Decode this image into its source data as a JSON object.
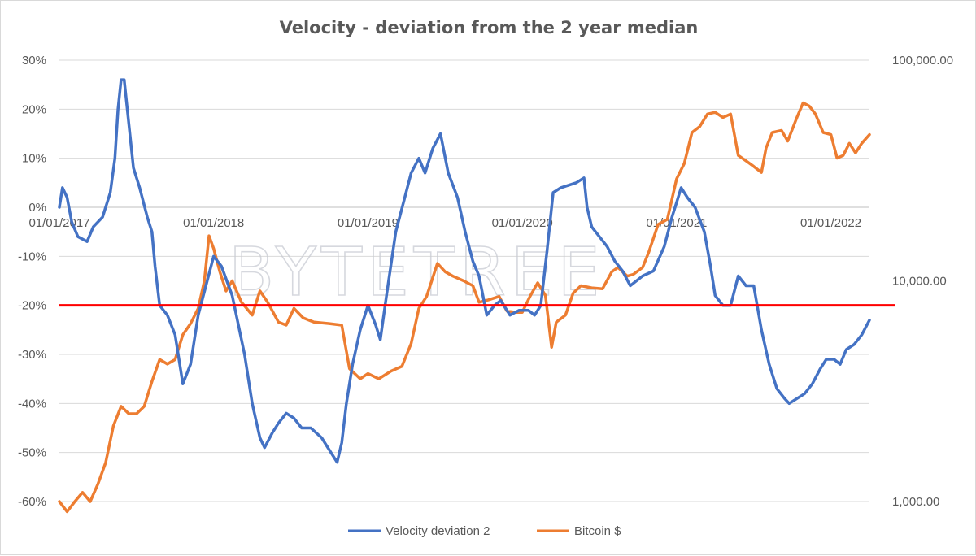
{
  "chart_data": {
    "type": "line",
    "title": "Velocity - deviation from the 2 year median",
    "watermark": "BYTETREE",
    "x_range": [
      2017.0,
      2022.25
    ],
    "x_ticks": [
      {
        "x": 2017,
        "label": "01/01/2017"
      },
      {
        "x": 2018,
        "label": "01/01/2018"
      },
      {
        "x": 2019,
        "label": "01/01/2019"
      },
      {
        "x": 2020,
        "label": "01/01/2020"
      },
      {
        "x": 2021,
        "label": "01/01/2021"
      },
      {
        "x": 2022,
        "label": "01/01/2022"
      }
    ],
    "y_left": {
      "range": [
        -0.6,
        0.3
      ],
      "ticks": [
        {
          "v": 0.3,
          "label": "30%"
        },
        {
          "v": 0.2,
          "label": "20%"
        },
        {
          "v": 0.1,
          "label": "10%"
        },
        {
          "v": 0.0,
          "label": "0%"
        },
        {
          "v": -0.1,
          "label": "-10%"
        },
        {
          "v": -0.2,
          "label": "-20%"
        },
        {
          "v": -0.3,
          "label": "-30%"
        },
        {
          "v": -0.4,
          "label": "-40%"
        },
        {
          "v": -0.5,
          "label": "-50%"
        },
        {
          "v": -0.6,
          "label": "-60%"
        }
      ]
    },
    "y_right": {
      "scale": "log",
      "range": [
        1000,
        100000
      ],
      "ticks": [
        {
          "v": 100000,
          "label": "100,000.00"
        },
        {
          "v": 10000,
          "label": "10,000.00"
        },
        {
          "v": 1000,
          "label": "1,000.00"
        }
      ]
    },
    "reference_line": {
      "value": -0.2,
      "axis": "left",
      "color": "#ff0000"
    },
    "series": [
      {
        "name": "Velocity deviation 2",
        "axis": "left",
        "color": "#4472c4",
        "points": [
          [
            2017.0,
            0.0
          ],
          [
            2017.02,
            0.04
          ],
          [
            2017.05,
            0.02
          ],
          [
            2017.08,
            -0.03
          ],
          [
            2017.12,
            -0.06
          ],
          [
            2017.18,
            -0.07
          ],
          [
            2017.22,
            -0.04
          ],
          [
            2017.28,
            -0.02
          ],
          [
            2017.33,
            0.03
          ],
          [
            2017.36,
            0.1
          ],
          [
            2017.38,
            0.2
          ],
          [
            2017.4,
            0.26
          ],
          [
            2017.42,
            0.26
          ],
          [
            2017.45,
            0.17
          ],
          [
            2017.48,
            0.08
          ],
          [
            2017.52,
            0.04
          ],
          [
            2017.57,
            -0.02
          ],
          [
            2017.6,
            -0.05
          ],
          [
            2017.62,
            -0.12
          ],
          [
            2017.65,
            -0.2
          ],
          [
            2017.7,
            -0.22
          ],
          [
            2017.75,
            -0.26
          ],
          [
            2017.8,
            -0.36
          ],
          [
            2017.85,
            -0.32
          ],
          [
            2017.9,
            -0.22
          ],
          [
            2017.95,
            -0.16
          ],
          [
            2018.0,
            -0.1
          ],
          [
            2018.05,
            -0.12
          ],
          [
            2018.12,
            -0.18
          ],
          [
            2018.2,
            -0.3
          ],
          [
            2018.25,
            -0.4
          ],
          [
            2018.3,
            -0.47
          ],
          [
            2018.33,
            -0.49
          ],
          [
            2018.38,
            -0.46
          ],
          [
            2018.42,
            -0.44
          ],
          [
            2018.47,
            -0.42
          ],
          [
            2018.52,
            -0.43
          ],
          [
            2018.57,
            -0.45
          ],
          [
            2018.63,
            -0.45
          ],
          [
            2018.7,
            -0.47
          ],
          [
            2018.76,
            -0.5
          ],
          [
            2018.8,
            -0.52
          ],
          [
            2018.83,
            -0.48
          ],
          [
            2018.86,
            -0.4
          ],
          [
            2018.9,
            -0.32
          ],
          [
            2018.95,
            -0.25
          ],
          [
            2019.0,
            -0.2
          ],
          [
            2019.05,
            -0.24
          ],
          [
            2019.08,
            -0.27
          ],
          [
            2019.12,
            -0.18
          ],
          [
            2019.18,
            -0.05
          ],
          [
            2019.23,
            0.01
          ],
          [
            2019.28,
            0.07
          ],
          [
            2019.33,
            0.1
          ],
          [
            2019.37,
            0.07
          ],
          [
            2019.42,
            0.12
          ],
          [
            2019.47,
            0.15
          ],
          [
            2019.52,
            0.07
          ],
          [
            2019.58,
            0.02
          ],
          [
            2019.63,
            -0.05
          ],
          [
            2019.68,
            -0.11
          ],
          [
            2019.72,
            -0.14
          ],
          [
            2019.77,
            -0.22
          ],
          [
            2019.82,
            -0.2
          ],
          [
            2019.86,
            -0.19
          ],
          [
            2019.92,
            -0.22
          ],
          [
            2019.98,
            -0.21
          ],
          [
            2020.04,
            -0.21
          ],
          [
            2020.08,
            -0.22
          ],
          [
            2020.12,
            -0.2
          ],
          [
            2020.16,
            -0.09
          ],
          [
            2020.2,
            0.03
          ],
          [
            2020.25,
            0.04
          ],
          [
            2020.35,
            0.05
          ],
          [
            2020.4,
            0.06
          ],
          [
            2020.42,
            0.0
          ],
          [
            2020.45,
            -0.04
          ],
          [
            2020.5,
            -0.06
          ],
          [
            2020.55,
            -0.08
          ],
          [
            2020.6,
            -0.11
          ],
          [
            2020.65,
            -0.13
          ],
          [
            2020.7,
            -0.16
          ],
          [
            2020.78,
            -0.14
          ],
          [
            2020.85,
            -0.13
          ],
          [
            2020.92,
            -0.08
          ],
          [
            2020.97,
            -0.02
          ],
          [
            2021.0,
            0.01
          ],
          [
            2021.03,
            0.04
          ],
          [
            2021.07,
            0.02
          ],
          [
            2021.12,
            0.0
          ],
          [
            2021.18,
            -0.05
          ],
          [
            2021.22,
            -0.12
          ],
          [
            2021.25,
            -0.18
          ],
          [
            2021.3,
            -0.2
          ],
          [
            2021.35,
            -0.2
          ],
          [
            2021.4,
            -0.14
          ],
          [
            2021.45,
            -0.16
          ],
          [
            2021.5,
            -0.16
          ],
          [
            2021.55,
            -0.25
          ],
          [
            2021.6,
            -0.32
          ],
          [
            2021.65,
            -0.37
          ],
          [
            2021.7,
            -0.39
          ],
          [
            2021.73,
            -0.4
          ],
          [
            2021.78,
            -0.39
          ],
          [
            2021.83,
            -0.38
          ],
          [
            2021.88,
            -0.36
          ],
          [
            2021.93,
            -0.33
          ],
          [
            2021.97,
            -0.31
          ],
          [
            2022.02,
            -0.31
          ],
          [
            2022.06,
            -0.32
          ],
          [
            2022.1,
            -0.29
          ],
          [
            2022.15,
            -0.28
          ],
          [
            2022.2,
            -0.26
          ],
          [
            2022.25,
            -0.23
          ]
        ]
      },
      {
        "name": "Bitcoin $",
        "axis": "right",
        "color": "#ed7d31",
        "points": [
          [
            2017.0,
            1000
          ],
          [
            2017.05,
            900
          ],
          [
            2017.1,
            1000
          ],
          [
            2017.15,
            1100
          ],
          [
            2017.2,
            1000
          ],
          [
            2017.25,
            1200
          ],
          [
            2017.3,
            1500
          ],
          [
            2017.35,
            2200
          ],
          [
            2017.4,
            2700
          ],
          [
            2017.45,
            2500
          ],
          [
            2017.5,
            2500
          ],
          [
            2017.55,
            2700
          ],
          [
            2017.6,
            3500
          ],
          [
            2017.65,
            4400
          ],
          [
            2017.7,
            4200
          ],
          [
            2017.75,
            4400
          ],
          [
            2017.8,
            5700
          ],
          [
            2017.85,
            6400
          ],
          [
            2017.9,
            7500
          ],
          [
            2017.94,
            10000
          ],
          [
            2017.97,
            16000
          ],
          [
            2018.0,
            14000
          ],
          [
            2018.04,
            11000
          ],
          [
            2018.08,
            9000
          ],
          [
            2018.12,
            10000
          ],
          [
            2018.18,
            8000
          ],
          [
            2018.25,
            7000
          ],
          [
            2018.3,
            9000
          ],
          [
            2018.35,
            8000
          ],
          [
            2018.42,
            6500
          ],
          [
            2018.47,
            6300
          ],
          [
            2018.52,
            7500
          ],
          [
            2018.58,
            6800
          ],
          [
            2018.65,
            6500
          ],
          [
            2018.75,
            6400
          ],
          [
            2018.83,
            6300
          ],
          [
            2018.88,
            4000
          ],
          [
            2018.95,
            3600
          ],
          [
            2019.0,
            3800
          ],
          [
            2019.07,
            3600
          ],
          [
            2019.15,
            3900
          ],
          [
            2019.22,
            4100
          ],
          [
            2019.28,
            5200
          ],
          [
            2019.33,
            7500
          ],
          [
            2019.38,
            8500
          ],
          [
            2019.45,
            12000
          ],
          [
            2019.5,
            11000
          ],
          [
            2019.55,
            10500
          ],
          [
            2019.62,
            10000
          ],
          [
            2019.68,
            9500
          ],
          [
            2019.72,
            8000
          ],
          [
            2019.78,
            8200
          ],
          [
            2019.85,
            8500
          ],
          [
            2019.9,
            7300
          ],
          [
            2019.96,
            7200
          ],
          [
            2020.0,
            7200
          ],
          [
            2020.05,
            8500
          ],
          [
            2020.1,
            9800
          ],
          [
            2020.15,
            8600
          ],
          [
            2020.19,
            5000
          ],
          [
            2020.22,
            6500
          ],
          [
            2020.28,
            7000
          ],
          [
            2020.33,
            8800
          ],
          [
            2020.38,
            9500
          ],
          [
            2020.45,
            9300
          ],
          [
            2020.52,
            9200
          ],
          [
            2020.58,
            11000
          ],
          [
            2020.62,
            11500
          ],
          [
            2020.68,
            10500
          ],
          [
            2020.72,
            10700
          ],
          [
            2020.78,
            11500
          ],
          [
            2020.82,
            13500
          ],
          [
            2020.88,
            18000
          ],
          [
            2020.94,
            19000
          ],
          [
            2021.0,
            29000
          ],
          [
            2021.05,
            34000
          ],
          [
            2021.1,
            47000
          ],
          [
            2021.15,
            50000
          ],
          [
            2021.2,
            57000
          ],
          [
            2021.25,
            58000
          ],
          [
            2021.3,
            55000
          ],
          [
            2021.35,
            57000
          ],
          [
            2021.4,
            37000
          ],
          [
            2021.45,
            35000
          ],
          [
            2021.5,
            33000
          ],
          [
            2021.55,
            31000
          ],
          [
            2021.58,
            40000
          ],
          [
            2021.62,
            47000
          ],
          [
            2021.68,
            48000
          ],
          [
            2021.72,
            43000
          ],
          [
            2021.78,
            55000
          ],
          [
            2021.82,
            64000
          ],
          [
            2021.86,
            62000
          ],
          [
            2021.9,
            57000
          ],
          [
            2021.95,
            47000
          ],
          [
            2022.0,
            46000
          ],
          [
            2022.04,
            36000
          ],
          [
            2022.08,
            37000
          ],
          [
            2022.12,
            42000
          ],
          [
            2022.16,
            38000
          ],
          [
            2022.2,
            42000
          ],
          [
            2022.25,
            46000
          ]
        ]
      }
    ]
  }
}
